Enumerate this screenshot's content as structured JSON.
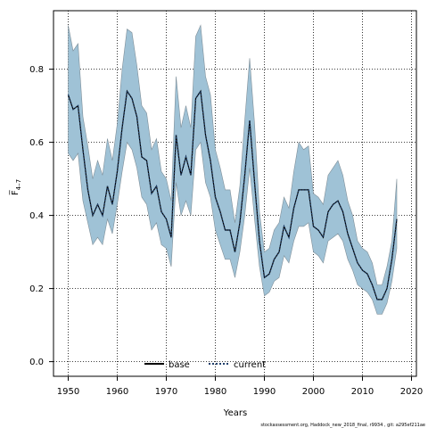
{
  "chart_data": {
    "type": "line",
    "xlabel": "Years",
    "ylabel": "F̅",
    "ylabel_sub": "4–7",
    "xlim": [
      1947,
      2021
    ],
    "ylim": [
      -0.04,
      0.96
    ],
    "xticks": [
      1950,
      1960,
      1970,
      1980,
      1990,
      2000,
      2010,
      2020
    ],
    "yticks": [
      0.0,
      0.2,
      0.4,
      0.6,
      0.8
    ],
    "grid": true,
    "legend_placement": "bottom-center",
    "colors": {
      "band": "#9fc2d6",
      "band_edge": "#7f8f99",
      "line": "#000000",
      "current": "#1f3f6b"
    },
    "x": [
      1950,
      1951,
      1952,
      1953,
      1954,
      1955,
      1956,
      1957,
      1958,
      1959,
      1960,
      1961,
      1962,
      1963,
      1964,
      1965,
      1966,
      1967,
      1968,
      1969,
      1970,
      1971,
      1972,
      1973,
      1974,
      1975,
      1976,
      1977,
      1978,
      1979,
      1980,
      1981,
      1982,
      1983,
      1984,
      1985,
      1986,
      1987,
      1988,
      1989,
      1990,
      1991,
      1992,
      1993,
      1994,
      1995,
      1996,
      1997,
      1998,
      1999,
      2000,
      2001,
      2002,
      2003,
      2004,
      2005,
      2006,
      2007,
      2008,
      2009,
      2010,
      2011,
      2012,
      2013,
      2014,
      2015,
      2016,
      2017
    ],
    "series": [
      {
        "name": "base",
        "style": "solid",
        "values": [
          0.73,
          0.69,
          0.7,
          0.58,
          0.47,
          0.4,
          0.43,
          0.4,
          0.48,
          0.43,
          0.52,
          0.64,
          0.74,
          0.72,
          0.67,
          0.56,
          0.55,
          0.46,
          0.48,
          0.41,
          0.39,
          0.34,
          0.62,
          0.51,
          0.56,
          0.51,
          0.72,
          0.74,
          0.62,
          0.55,
          0.45,
          0.41,
          0.36,
          0.36,
          0.3,
          0.38,
          0.51,
          0.66,
          0.49,
          0.33,
          0.23,
          0.24,
          0.28,
          0.3,
          0.37,
          0.34,
          0.42,
          0.47,
          0.47,
          0.47,
          0.37,
          0.36,
          0.34,
          0.41,
          0.43,
          0.44,
          0.41,
          0.35,
          0.31,
          0.27,
          0.25,
          0.24,
          0.21,
          0.17,
          0.17,
          0.2,
          0.28,
          0.39
        ]
      },
      {
        "name": "current",
        "style": "dotted",
        "values": [
          0.73,
          0.69,
          0.7,
          0.58,
          0.47,
          0.4,
          0.43,
          0.4,
          0.48,
          0.43,
          0.52,
          0.64,
          0.74,
          0.72,
          0.67,
          0.56,
          0.55,
          0.46,
          0.48,
          0.41,
          0.39,
          0.34,
          0.62,
          0.51,
          0.56,
          0.51,
          0.72,
          0.74,
          0.62,
          0.55,
          0.45,
          0.41,
          0.36,
          0.36,
          0.3,
          0.38,
          0.51,
          0.66,
          0.49,
          0.33,
          0.23,
          0.24,
          0.28,
          0.3,
          0.37,
          0.34,
          0.42,
          0.47,
          0.47,
          0.47,
          0.37,
          0.36,
          0.34,
          0.41,
          0.43,
          0.44,
          0.41,
          0.35,
          0.31,
          0.27,
          0.25,
          0.24,
          0.21,
          0.17,
          0.17,
          0.2,
          0.28,
          0.39
        ]
      }
    ],
    "band_upper": [
      0.92,
      0.85,
      0.87,
      0.67,
      0.59,
      0.5,
      0.55,
      0.51,
      0.61,
      0.55,
      0.65,
      0.8,
      0.91,
      0.9,
      0.81,
      0.7,
      0.68,
      0.58,
      0.61,
      0.52,
      0.5,
      0.44,
      0.78,
      0.64,
      0.7,
      0.64,
      0.89,
      0.92,
      0.78,
      0.73,
      0.58,
      0.53,
      0.47,
      0.47,
      0.38,
      0.48,
      0.66,
      0.83,
      0.65,
      0.41,
      0.3,
      0.31,
      0.36,
      0.38,
      0.45,
      0.42,
      0.52,
      0.6,
      0.58,
      0.59,
      0.46,
      0.45,
      0.43,
      0.51,
      0.53,
      0.55,
      0.51,
      0.44,
      0.4,
      0.33,
      0.31,
      0.3,
      0.27,
      0.21,
      0.21,
      0.26,
      0.33,
      0.5
    ],
    "band_lower": [
      0.57,
      0.55,
      0.57,
      0.44,
      0.38,
      0.32,
      0.34,
      0.32,
      0.39,
      0.35,
      0.43,
      0.52,
      0.6,
      0.58,
      0.53,
      0.45,
      0.43,
      0.36,
      0.38,
      0.32,
      0.31,
      0.26,
      0.49,
      0.4,
      0.44,
      0.4,
      0.58,
      0.6,
      0.49,
      0.45,
      0.36,
      0.32,
      0.28,
      0.28,
      0.23,
      0.3,
      0.4,
      0.53,
      0.39,
      0.26,
      0.18,
      0.19,
      0.22,
      0.23,
      0.29,
      0.27,
      0.33,
      0.37,
      0.37,
      0.38,
      0.3,
      0.29,
      0.27,
      0.33,
      0.34,
      0.35,
      0.33,
      0.28,
      0.25,
      0.21,
      0.2,
      0.19,
      0.17,
      0.13,
      0.13,
      0.16,
      0.22,
      0.31
    ]
  },
  "footer": "stockassessment.org, Haddock_new_2018_final, r9934 , git: a295ef211ae"
}
